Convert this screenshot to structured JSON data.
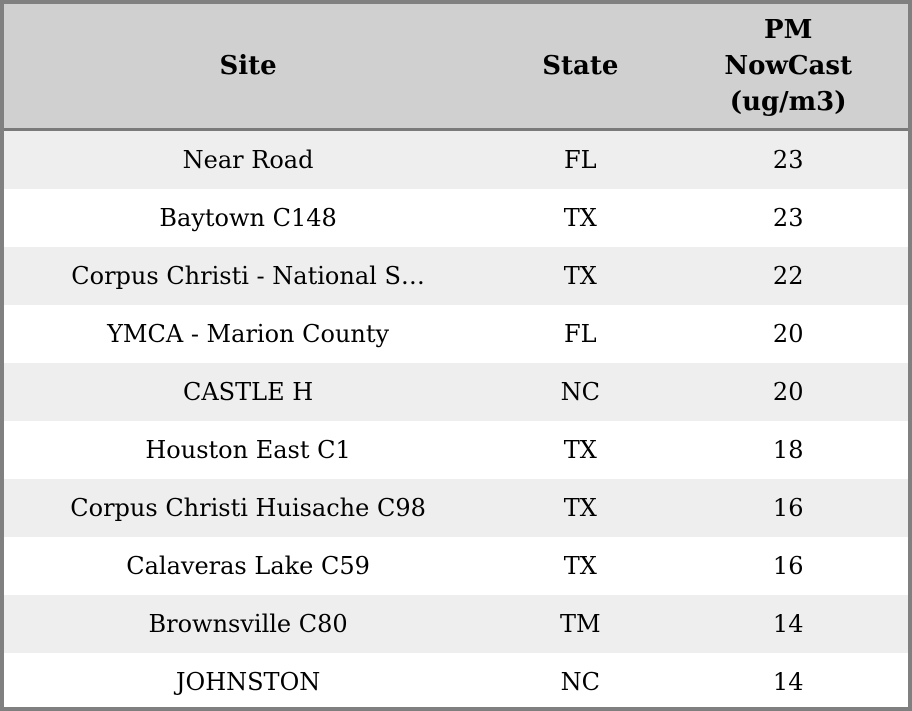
{
  "colors": {
    "border": "#808080",
    "header-bg": "#d0d0d0",
    "header-separator": "#7a7a7a",
    "stripe-bg": "#eeeeee",
    "row-bg": "#ffffff",
    "text": "#000000"
  },
  "chart_data": {
    "type": "table",
    "columns": [
      "Site",
      "State",
      "PM NowCast (ug/m3)"
    ],
    "rows": [
      [
        "Near Road",
        "FL",
        23
      ],
      [
        "Baytown C148",
        "TX",
        23
      ],
      [
        "Corpus Christi - National S…",
        "TX",
        22
      ],
      [
        "YMCA - Marion County",
        "FL",
        20
      ],
      [
        "CASTLE H",
        "NC",
        20
      ],
      [
        "Houston East C1",
        "TX",
        18
      ],
      [
        "Corpus Christi Huisache C98",
        "TX",
        16
      ],
      [
        "Calaveras Lake C59",
        "TX",
        16
      ],
      [
        "Brownsville C80",
        "TM",
        14
      ],
      [
        "JOHNSTON",
        "NC",
        14
      ]
    ]
  }
}
